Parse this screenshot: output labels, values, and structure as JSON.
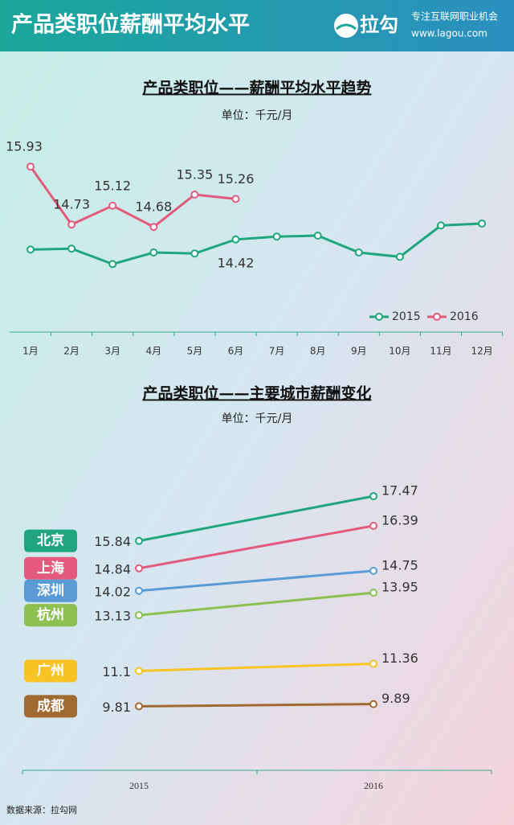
{
  "header": {
    "title": "产品类职位薪酬平均水平",
    "brand": "拉勾",
    "tagline": "专注互联网职业机会",
    "url": "www.lagou.com"
  },
  "chart_data": [
    {
      "type": "line",
      "title": "产品类职位——薪酬平均水平趋势",
      "subtitle": "单位：千元/月",
      "categories": [
        "1月",
        "2月",
        "3月",
        "4月",
        "5月",
        "6月",
        "7月",
        "8月",
        "9月",
        "10月",
        "11月",
        "12月"
      ],
      "ylim": [
        13,
        16.5
      ],
      "legend": "bottom-right",
      "series": [
        {
          "name": "2015",
          "color": "#1fa67f",
          "values": [
            14.21,
            14.23,
            13.91,
            14.15,
            14.13,
            14.42,
            14.48,
            14.5,
            14.15,
            14.06,
            14.71,
            14.75
          ],
          "value_labels": [
            null,
            null,
            null,
            null,
            null,
            "14.42",
            null,
            null,
            null,
            null,
            null,
            null
          ]
        },
        {
          "name": "2016",
          "color": "#e35a7e",
          "values": [
            15.93,
            14.73,
            15.12,
            14.68,
            15.35,
            15.26,
            null,
            null,
            null,
            null,
            null,
            null
          ]
        }
      ]
    },
    {
      "type": "slope",
      "title": "产品类职位——主要城市薪酬变化",
      "subtitle": "单位：千元/月",
      "categories": [
        "2015",
        "2016"
      ],
      "ylim": [
        9,
        18
      ],
      "series": [
        {
          "name": "北京",
          "color": "#1fa67f",
          "values": [
            15.84,
            17.47
          ]
        },
        {
          "name": "上海",
          "color": "#e35a7e",
          "values": [
            14.84,
            16.39
          ]
        },
        {
          "name": "深圳",
          "color": "#5b9bd5",
          "values": [
            14.02,
            14.75
          ]
        },
        {
          "name": "杭州",
          "color": "#8cc152",
          "values": [
            13.13,
            13.95
          ]
        },
        {
          "name": "广州",
          "color": "#f7c325",
          "values": [
            11.1,
            11.36
          ]
        },
        {
          "name": "成都",
          "color": "#a0692f",
          "values": [
            9.81,
            9.89
          ]
        }
      ]
    }
  ],
  "footer": {
    "source": "数据来源：拉勾网"
  }
}
